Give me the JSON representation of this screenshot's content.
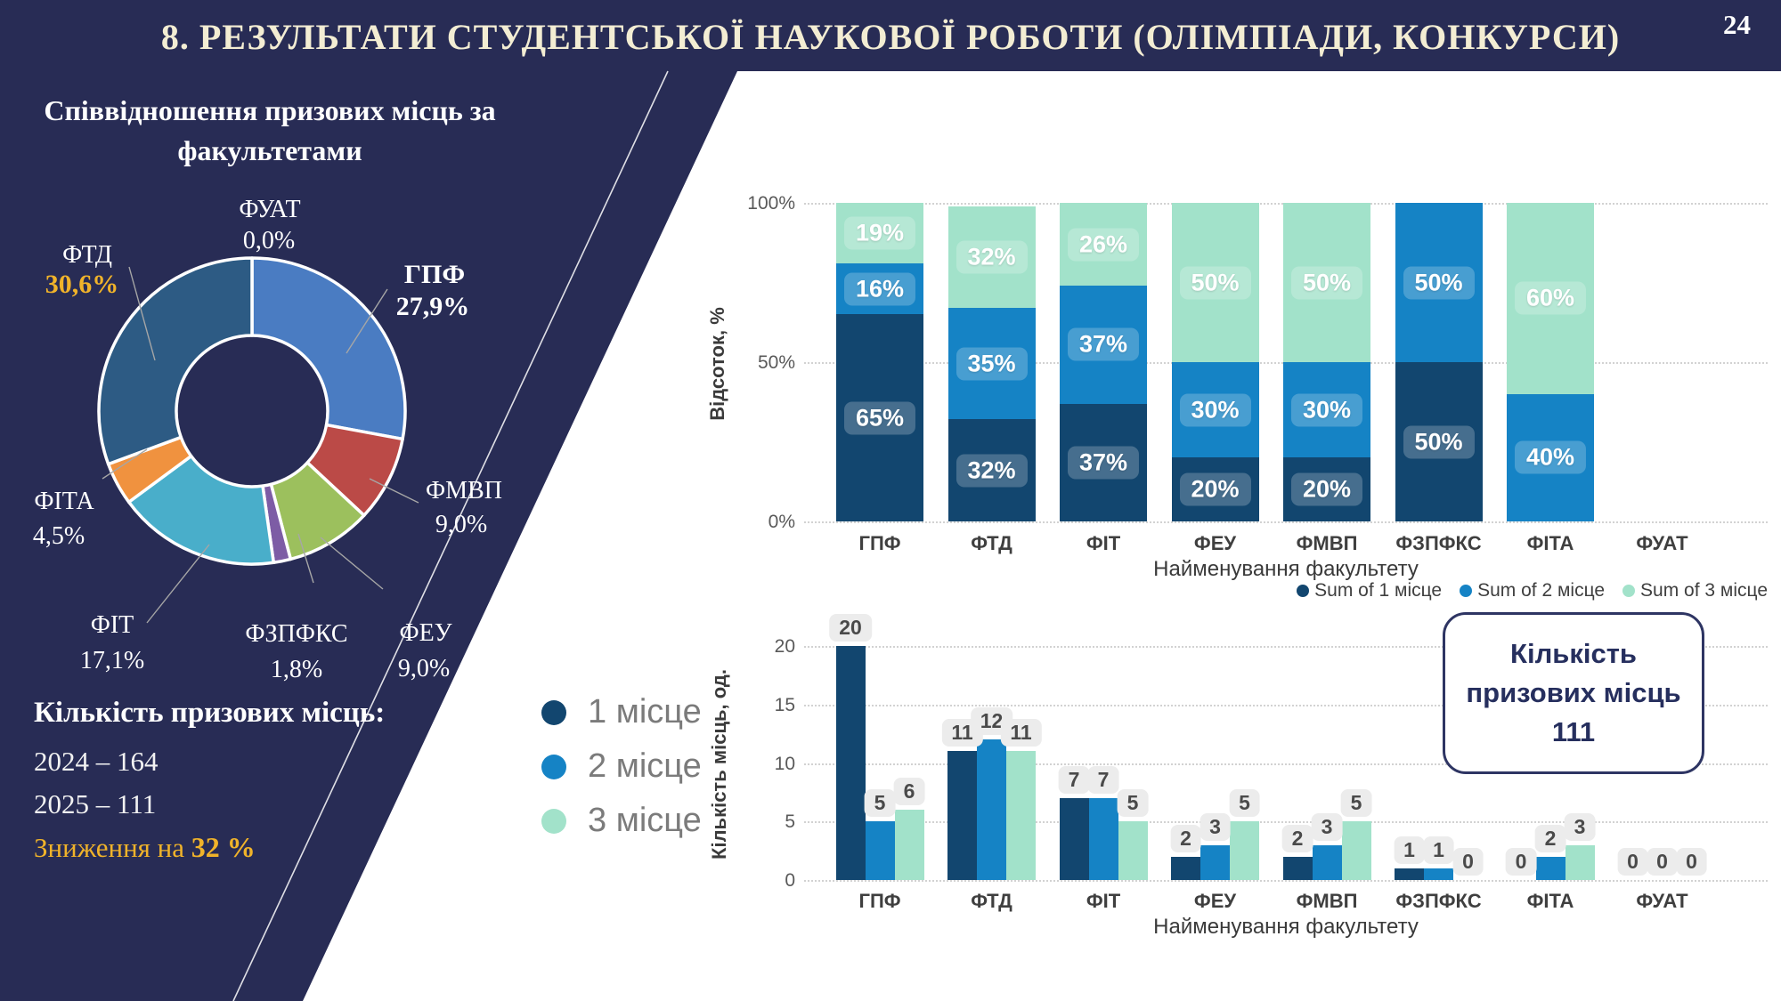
{
  "header": {
    "title": "8. РЕЗУЛЬТАТИ СТУДЕНТСЬКОЇ НАУКОВОЇ РОБОТИ (ОЛІМПІАДИ, КОНКУРСИ)",
    "page_number": "24"
  },
  "palette": {
    "slide_navy": "#282c55",
    "title_cream": "#f3edd3",
    "accent_gold": "#f0b32a",
    "place1_dark_blue": "#12466f",
    "place2_blue": "#1583c5",
    "place3_mint": "#a2e2ca"
  },
  "pie_panel": {
    "title": "Співвідношення призових місць за факультетами",
    "summary_heading": "Кількість призових місць:",
    "summary_2024": "2024 – 164",
    "summary_2025": "2025 – 111",
    "decline_prefix": "Зниження на ",
    "decline_value": "32 %"
  },
  "annotation_box": {
    "line1": "Кількість",
    "line2": "призових місць",
    "line3": "111"
  },
  "legend_large": {
    "items": [
      {
        "label": "1 місце",
        "color": "#12466f"
      },
      {
        "label": "2 місце",
        "color": "#1583c5"
      },
      {
        "label": "3 місце",
        "color": "#a2e2ca"
      }
    ]
  },
  "legend_small": {
    "items": [
      {
        "label": "Sum of 1 місце",
        "color": "#12466f"
      },
      {
        "label": "Sum of 2 місце",
        "color": "#1583c5"
      },
      {
        "label": "Sum of 3 місце",
        "color": "#a2e2ca"
      }
    ]
  },
  "chart_data": [
    {
      "id": "faculty-share-donut",
      "type": "pie",
      "title": "Співвідношення призових місць за факультетами",
      "labels": [
        "ФУАТ",
        "ГПФ",
        "ФМВП",
        "ФЕУ",
        "ФЗПФКС",
        "ФІТ",
        "ФІТА",
        "ФТД"
      ],
      "values": [
        0.0,
        27.9,
        9.0,
        9.0,
        1.8,
        17.1,
        4.5,
        30.6
      ],
      "display_values": [
        "0,0%",
        "27,9%",
        "9,0%",
        "9,0%",
        "1,8%",
        "17,1%",
        "4,5%",
        "30,6%"
      ],
      "colors": [
        "#cccccc",
        "#4a7cc2",
        "#bb4a47",
        "#9cc05d",
        "#7d5ca5",
        "#49aeca",
        "#f0923f",
        "#2d5b84"
      ]
    },
    {
      "id": "percent-by-faculty-stacked",
      "type": "bar",
      "stacked": true,
      "categories": [
        "ГПФ",
        "ФТД",
        "ФІТ",
        "ФЕУ",
        "ФМВП",
        "ФЗПФКС",
        "ФІТА",
        "ФУАТ"
      ],
      "series": [
        {
          "name": "Sum of 1 місце",
          "color": "#12466f",
          "values": [
            65,
            32,
            37,
            20,
            20,
            50,
            0,
            0
          ]
        },
        {
          "name": "Sum of 2 місце",
          "color": "#1583c5",
          "values": [
            16,
            35,
            37,
            30,
            30,
            50,
            40,
            0
          ]
        },
        {
          "name": "Sum of 3 місце",
          "color": "#a2e2ca",
          "values": [
            19,
            32,
            26,
            50,
            50,
            0,
            60,
            0
          ]
        }
      ],
      "value_suffix": "%",
      "xlabel": "Найменування факультету",
      "ylabel": "Відсоток, %",
      "yticks": [
        "0%",
        "50%",
        "100%"
      ],
      "ylim": [
        0,
        100
      ],
      "grid": true,
      "legend_position": "below-right"
    },
    {
      "id": "places-count-grouped",
      "type": "bar",
      "stacked": false,
      "categories": [
        "ГПФ",
        "ФТД",
        "ФІТ",
        "ФЕУ",
        "ФМВП",
        "ФЗПФКС",
        "ФІТА",
        "ФУАТ"
      ],
      "series": [
        {
          "name": "1 місце",
          "color": "#12466f",
          "values": [
            20,
            11,
            7,
            2,
            2,
            1,
            0,
            0
          ]
        },
        {
          "name": "2 місце",
          "color": "#1583c5",
          "values": [
            5,
            12,
            7,
            3,
            3,
            1,
            2,
            0
          ]
        },
        {
          "name": "3 місце",
          "color": "#a2e2ca",
          "values": [
            6,
            11,
            5,
            5,
            5,
            0,
            3,
            0
          ]
        }
      ],
      "xlabel": "Найменування факультету",
      "ylabel": "Кількість місць, од.",
      "yticks": [
        0,
        5,
        10,
        15,
        20
      ],
      "ylim": [
        0,
        21
      ],
      "grid": true,
      "total_annotation": "Кількість призових місць 111"
    }
  ]
}
